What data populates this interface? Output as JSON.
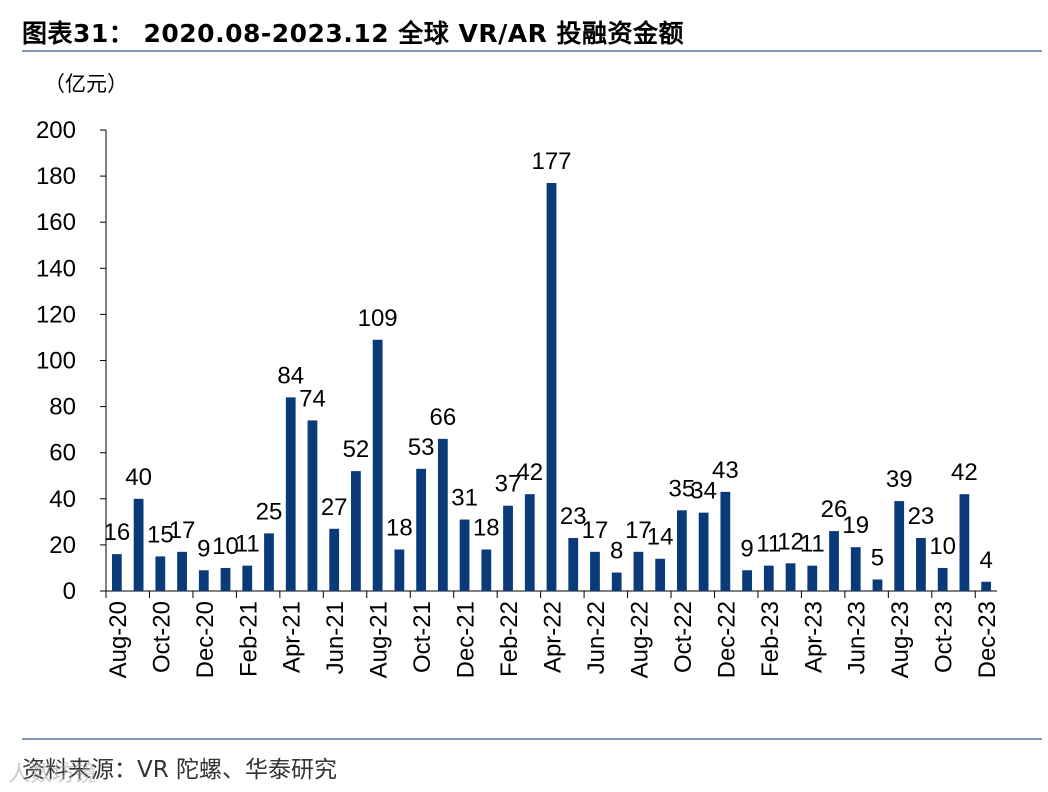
{
  "header": {
    "title": "图表31：  2020.08-2023.12  全球 VR/AR 投融资金额"
  },
  "unit": "（亿元）",
  "footer": {
    "source": "资料来源：VR 陀螺、华泰研究",
    "watermark": "人数坊镜"
  },
  "colors": {
    "bar": "#0b3a7a",
    "rule": "#8497b0"
  },
  "chart_data": {
    "type": "bar",
    "title": "2020.08-2023.12 全球 VR/AR 投融资金额",
    "ylabel": "（亿元）",
    "xlabel": "",
    "ylim": [
      0,
      200
    ],
    "yticks": [
      0,
      20,
      40,
      60,
      80,
      100,
      120,
      140,
      160,
      180,
      200
    ],
    "grid": false,
    "categories": [
      "Aug-20",
      "Sep-20",
      "Oct-20",
      "Nov-20",
      "Dec-20",
      "Jan-21",
      "Feb-21",
      "Mar-21",
      "Apr-21",
      "May-21",
      "Jun-21",
      "Jul-21",
      "Aug-21",
      "Sep-21",
      "Oct-21",
      "Nov-21",
      "Dec-21",
      "Jan-22",
      "Feb-22",
      "Mar-22",
      "Apr-22",
      "May-22",
      "Jun-22",
      "Jul-22",
      "Aug-22",
      "Sep-22",
      "Oct-22",
      "Nov-22",
      "Dec-22",
      "Jan-23",
      "Feb-23",
      "Mar-23",
      "Apr-23",
      "May-23",
      "Jun-23",
      "Jul-23",
      "Aug-23",
      "Sep-23",
      "Oct-23",
      "Nov-23",
      "Dec-23"
    ],
    "tick_labels": [
      "Aug-20",
      "Oct-20",
      "Dec-20",
      "Feb-21",
      "Apr-21",
      "Jun-21",
      "Aug-21",
      "Oct-21",
      "Dec-21",
      "Feb-22",
      "Apr-22",
      "Jun-22",
      "Aug-22",
      "Oct-22",
      "Dec-22",
      "Feb-23",
      "Apr-23",
      "Jun-23",
      "Aug-23",
      "Oct-23",
      "Dec-23"
    ],
    "values": [
      16,
      40,
      15,
      17,
      9,
      10,
      11,
      25,
      84,
      74,
      27,
      52,
      109,
      18,
      53,
      66,
      31,
      18,
      37,
      42,
      177,
      23,
      17,
      8,
      17,
      14,
      35,
      34,
      43,
      9,
      11,
      12,
      11,
      26,
      19,
      5,
      39,
      23,
      10,
      42,
      4
    ]
  }
}
